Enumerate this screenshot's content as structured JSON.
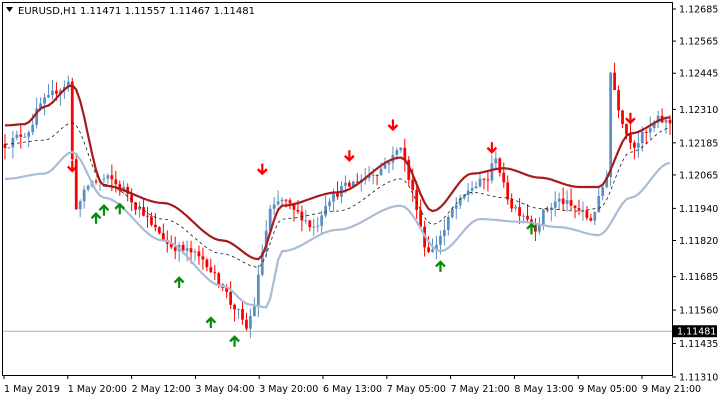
{
  "header": {
    "symbol": "EURUSD,H1",
    "prices": "1.11471 1.11557 1.11467 1.11481"
  },
  "colors": {
    "up": "#5b8fc1",
    "down": "#ff0000",
    "upper_band": "#a31d1d",
    "lower_band": "#a9bdd6",
    "mid_band": "#1a1a1a",
    "buy_arrow": "#0a8a0a",
    "sell_arrow": "#ff0000",
    "current_price_line": "#b0b0b0",
    "grid": "none"
  },
  "chart_data": {
    "type": "candlestick",
    "title": "",
    "grid": false,
    "ylim": [
      1.1131,
      1.12685
    ],
    "y_ticks": [
      1.12685,
      1.12565,
      1.12445,
      1.1231,
      1.12185,
      1.12065,
      1.1194,
      1.1182,
      1.11685,
      1.1156,
      1.11435,
      1.1131
    ],
    "current_price": 1.11481,
    "current_price_label": "1.11481",
    "x_tick_labels": [
      "1 May 2019",
      "1 May 20:00",
      "2 May 12:00",
      "3 May 04:00",
      "3 May 20:00",
      "6 May 13:00",
      "7 May 05:00",
      "7 May 21:00",
      "8 May 13:00",
      "9 May 05:00",
      "9 May 21:00"
    ],
    "upper_band_anchors": [
      [
        0,
        1.1225
      ],
      [
        5,
        1.12255
      ],
      [
        10,
        1.1232
      ],
      [
        17,
        1.124
      ],
      [
        25,
        1.12025
      ],
      [
        40,
        1.1196
      ],
      [
        55,
        1.1182
      ],
      [
        64,
        1.1175
      ],
      [
        70,
        1.1195
      ],
      [
        84,
        1.12
      ],
      [
        100,
        1.1213
      ],
      [
        108,
        1.1193
      ],
      [
        118,
        1.1207
      ],
      [
        126,
        1.1209
      ],
      [
        135,
        1.12055
      ],
      [
        145,
        1.1202
      ],
      [
        150,
        1.1202
      ],
      [
        158,
        1.1222
      ],
      [
        168,
        1.1228
      ]
    ],
    "mid_band_anchors": [
      [
        0,
        1.1218
      ],
      [
        10,
        1.12195
      ],
      [
        17,
        1.1226
      ],
      [
        25,
        1.1203
      ],
      [
        40,
        1.119
      ],
      [
        55,
        1.1177
      ],
      [
        64,
        1.1172
      ],
      [
        70,
        1.119
      ],
      [
        84,
        1.1193
      ],
      [
        100,
        1.1205
      ],
      [
        108,
        1.1188
      ],
      [
        118,
        1.12
      ],
      [
        126,
        1.1198
      ],
      [
        135,
        1.1194
      ],
      [
        145,
        1.1193
      ],
      [
        150,
        1.1194
      ],
      [
        158,
        1.1215
      ],
      [
        168,
        1.1224
      ]
    ],
    "lower_band_anchors": [
      [
        0,
        1.1205
      ],
      [
        10,
        1.1207
      ],
      [
        17,
        1.1215
      ],
      [
        25,
        1.1198
      ],
      [
        40,
        1.1182
      ],
      [
        55,
        1.1165
      ],
      [
        62,
        1.1158
      ],
      [
        66,
        1.1157
      ],
      [
        70,
        1.1178
      ],
      [
        84,
        1.1186
      ],
      [
        100,
        1.1195
      ],
      [
        110,
        1.1178
      ],
      [
        120,
        1.119
      ],
      [
        130,
        1.1189
      ],
      [
        140,
        1.1187
      ],
      [
        150,
        1.1184
      ],
      [
        158,
        1.1198
      ],
      [
        168,
        1.1211
      ]
    ],
    "price_anchors": [
      [
        0,
        1.1218
      ],
      [
        5,
        1.1222
      ],
      [
        10,
        1.1234
      ],
      [
        14,
        1.1239
      ],
      [
        16,
        1.1241
      ],
      [
        17,
        1.1212
      ],
      [
        18,
        1.1195
      ],
      [
        22,
        1.1204
      ],
      [
        26,
        1.1205
      ],
      [
        30,
        1.1201
      ],
      [
        34,
        1.1194
      ],
      [
        38,
        1.1186
      ],
      [
        42,
        1.118
      ],
      [
        46,
        1.1178
      ],
      [
        50,
        1.1175
      ],
      [
        54,
        1.1167
      ],
      [
        58,
        1.1157
      ],
      [
        61,
        1.1149
      ],
      [
        63,
        1.1158
      ],
      [
        65,
        1.1178
      ],
      [
        67,
        1.1193
      ],
      [
        70,
        1.1197
      ],
      [
        74,
        1.1192
      ],
      [
        78,
        1.1187
      ],
      [
        82,
        1.1198
      ],
      [
        86,
        1.1202
      ],
      [
        90,
        1.1205
      ],
      [
        94,
        1.1208
      ],
      [
        98,
        1.1213
      ],
      [
        100,
        1.1218
      ],
      [
        102,
        1.1205
      ],
      [
        104,
        1.1195
      ],
      [
        106,
        1.118
      ],
      [
        108,
        1.1178
      ],
      [
        110,
        1.1184
      ],
      [
        114,
        1.1195
      ],
      [
        118,
        1.1202
      ],
      [
        122,
        1.1205
      ],
      [
        124,
        1.1214
      ],
      [
        126,
        1.1202
      ],
      [
        128,
        1.1195
      ],
      [
        131,
        1.1192
      ],
      [
        134,
        1.1187
      ],
      [
        137,
        1.1194
      ],
      [
        140,
        1.1197
      ],
      [
        144,
        1.1194
      ],
      [
        148,
        1.119
      ],
      [
        150,
        1.1197
      ],
      [
        152,
        1.1207
      ],
      [
        153,
        1.1245
      ],
      [
        155,
        1.1232
      ],
      [
        157,
        1.1222
      ],
      [
        159,
        1.1218
      ],
      [
        162,
        1.1222
      ],
      [
        165,
        1.1227
      ],
      [
        168,
        1.1226
      ]
    ],
    "sell_arrows": [
      [
        17,
        1.1208
      ],
      [
        65,
        1.1207
      ],
      [
        87,
        1.1212
      ],
      [
        98,
        1.12235
      ],
      [
        123,
        1.1215
      ],
      [
        158,
        1.1226
      ]
    ],
    "buy_arrows": [
      [
        23,
        1.1192
      ],
      [
        25,
        1.1195
      ],
      [
        29,
        1.11955
      ],
      [
        44,
        1.1168
      ],
      [
        52,
        1.1153
      ],
      [
        58,
        1.1146
      ],
      [
        110,
        1.1174
      ],
      [
        133,
        1.1188
      ]
    ]
  }
}
